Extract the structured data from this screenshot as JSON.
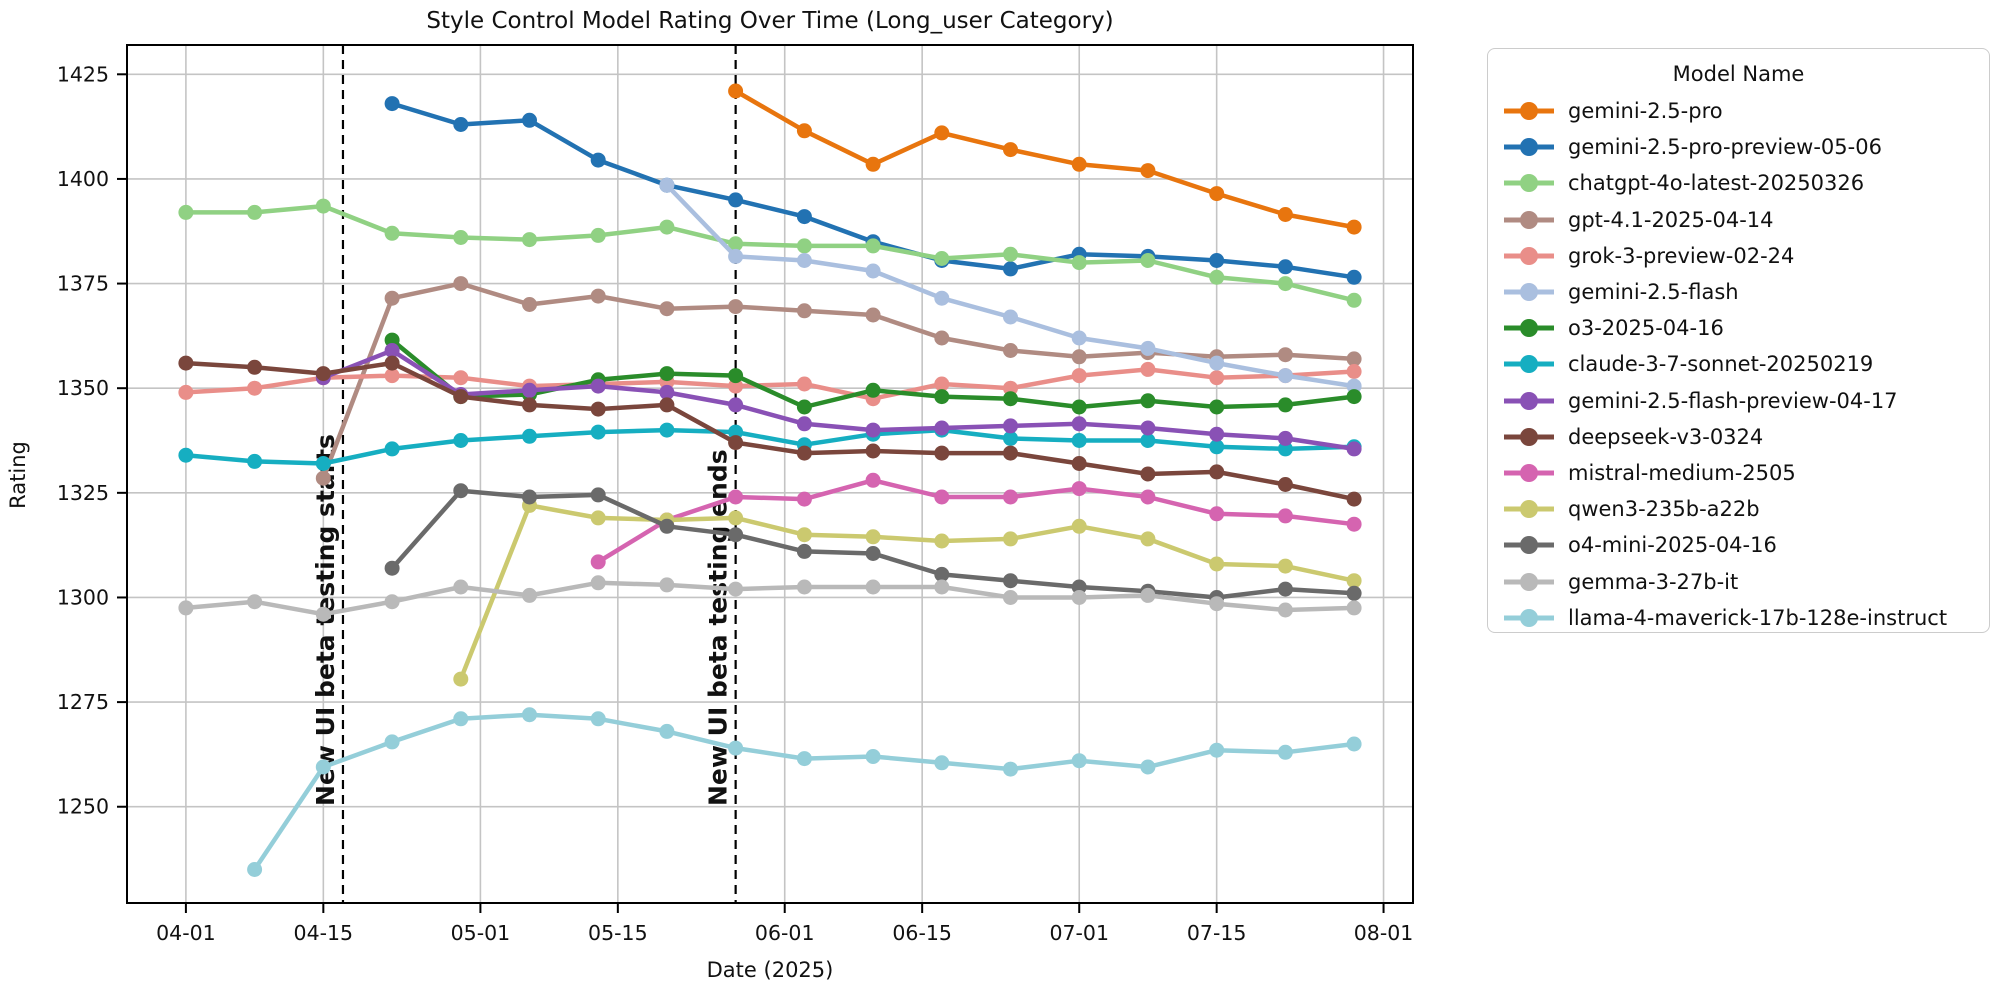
{
  "figure": {
    "title": "Style Control Model Rating Over Time (Long_user Category)",
    "xlabel": "Date (2025)",
    "ylabel": "Rating"
  },
  "legend": {
    "title": "Model Name"
  },
  "chart_data": {
    "type": "line",
    "title": "Style Control Model Rating Over Time (Long_user Category)",
    "xlabel": "Date (2025)",
    "ylabel": "Rating",
    "legend_title": "Model Name",
    "legend_position": "right",
    "grid": true,
    "x_unit": "days since 2025-04-01",
    "x_days": [
      0,
      7,
      14,
      21,
      28,
      35,
      42,
      49,
      56,
      63,
      70,
      77,
      84,
      91,
      98,
      105,
      112,
      119
    ],
    "x_dates": [
      "04-01",
      "04-08",
      "04-15",
      "04-22",
      "04-29",
      "05-06",
      "05-13",
      "05-20",
      "05-27",
      "06-03",
      "06-10",
      "06-17",
      "06-24",
      "07-01",
      "07-08",
      "07-15",
      "07-22",
      "07-29"
    ],
    "xticks": [
      {
        "day": 0,
        "label": "04-01"
      },
      {
        "day": 14,
        "label": "04-15"
      },
      {
        "day": 30,
        "label": "05-01"
      },
      {
        "day": 44,
        "label": "05-15"
      },
      {
        "day": 61,
        "label": "06-01"
      },
      {
        "day": 75,
        "label": "06-15"
      },
      {
        "day": 91,
        "label": "07-01"
      },
      {
        "day": 105,
        "label": "07-15"
      },
      {
        "day": 122,
        "label": "08-01"
      }
    ],
    "yticks": [
      1250,
      1275,
      1300,
      1325,
      1350,
      1375,
      1400,
      1425
    ],
    "xlim": [
      -6,
      125
    ],
    "ylim": [
      1227,
      1432
    ],
    "annotations": [
      {
        "day": 16,
        "label": "New UI beta testing starts"
      },
      {
        "day": 56,
        "label": "New UI beta testing ends"
      }
    ],
    "grid_color": "#c4c4c4",
    "annotation_color": "#111111",
    "series": [
      {
        "name": "gemini-2.5-pro",
        "color": "#e8750e",
        "values": [
          null,
          null,
          null,
          null,
          null,
          null,
          null,
          null,
          1421,
          1411.5,
          1403.5,
          1411,
          1407,
          1403.5,
          1402,
          1396.5,
          1391.5,
          1388.5
        ]
      },
      {
        "name": "gemini-2.5-pro-preview-05-06",
        "color": "#2272b2",
        "values": [
          null,
          null,
          null,
          1418,
          1413,
          1414,
          1404.5,
          1398.5,
          1395,
          1391,
          1385,
          1380.5,
          1378.5,
          1382,
          1381.5,
          1380.5,
          1379,
          1376.5
        ]
      },
      {
        "name": "chatgpt-4o-latest-20250326",
        "color": "#90d183",
        "values": [
          1392,
          1392,
          1393.5,
          1387,
          1386,
          1385.5,
          1386.5,
          1388.5,
          1384.5,
          1384,
          1384,
          1381,
          1382,
          1380,
          1380.5,
          1376.5,
          1375,
          1371
        ]
      },
      {
        "name": "gpt-4.1-2025-04-14",
        "color": "#b08b82",
        "values": [
          null,
          null,
          1328.5,
          1371.5,
          1375,
          1370,
          1372,
          1369,
          1369.5,
          1368.5,
          1367.5,
          1362,
          1359,
          1357.5,
          1358.5,
          1357.5,
          1358,
          1357
        ]
      },
      {
        "name": "grok-3-preview-02-24",
        "color": "#e98e89",
        "values": [
          1349,
          1350,
          1352.5,
          1353,
          1352.5,
          1350.5,
          1351,
          1351.5,
          1350.5,
          1351,
          1347.5,
          1351,
          1350,
          1353,
          1354.5,
          1352.5,
          1353,
          1354
        ]
      },
      {
        "name": "gemini-2.5-flash",
        "color": "#aabfdf",
        "values": [
          null,
          null,
          null,
          null,
          null,
          null,
          null,
          1398.5,
          1381.5,
          1380.5,
          1378,
          1371.5,
          1367,
          1362,
          1359.5,
          1356,
          1353,
          1350.5
        ]
      },
      {
        "name": "o3-2025-04-16",
        "color": "#2a8c2a",
        "values": [
          null,
          null,
          null,
          1361.5,
          1348,
          1348.5,
          1352,
          1353.5,
          1353,
          1345.5,
          1349.5,
          1348,
          1347.5,
          1345.5,
          1347,
          1345.5,
          1346,
          1348
        ]
      },
      {
        "name": "claude-3-7-sonnet-20250219",
        "color": "#16aec1",
        "values": [
          1334,
          1332.5,
          1332,
          1335.5,
          1337.5,
          1338.5,
          1339.5,
          1340,
          1339.5,
          1336.5,
          1339,
          1340,
          1338,
          1337.5,
          1337.5,
          1336,
          1335.5,
          1336
        ]
      },
      {
        "name": "gemini-2.5-flash-preview-04-17",
        "color": "#8951b5",
        "values": [
          null,
          null,
          1352.5,
          1359,
          1348.5,
          1349.5,
          1350.5,
          1349,
          1346,
          1341.5,
          1340,
          1340.5,
          1341,
          1341.5,
          1340.5,
          1339,
          1338,
          1335.5
        ]
      },
      {
        "name": "deepseek-v3-0324",
        "color": "#7a463c",
        "values": [
          1356,
          1355,
          1353.5,
          1356,
          1348,
          1346,
          1345,
          1346,
          1337,
          1334.5,
          1335,
          1334.5,
          1334.5,
          1332,
          1329.5,
          1330,
          1327,
          1323.5
        ]
      },
      {
        "name": "mistral-medium-2505",
        "color": "#d564b0",
        "values": [
          null,
          null,
          null,
          null,
          null,
          null,
          1308.5,
          1318.5,
          1324,
          1323.5,
          1328,
          1324,
          1324,
          1326,
          1324,
          1320,
          1319.5,
          1317.5
        ]
      },
      {
        "name": "qwen3-235b-a22b",
        "color": "#cbc96f",
        "values": [
          null,
          null,
          null,
          null,
          1280.5,
          1322,
          1319,
          1318.5,
          1319,
          1315,
          1314.5,
          1313.5,
          1314,
          1317,
          1314,
          1308,
          1307.5,
          1304
        ]
      },
      {
        "name": "o4-mini-2025-04-16",
        "color": "#6a6a6a",
        "values": [
          null,
          null,
          null,
          1307,
          1325.5,
          1324,
          1324.5,
          1317,
          1315,
          1311,
          1310.5,
          1305.5,
          1304,
          1302.5,
          1301.5,
          1300,
          1302,
          1301
        ]
      },
      {
        "name": "gemma-3-27b-it",
        "color": "#b9b9b9",
        "values": [
          1297.5,
          1299,
          1296,
          1299,
          1302.5,
          1300.5,
          1303.5,
          1303,
          1302,
          1302.5,
          1302.5,
          1302.5,
          1300,
          1300,
          1300.5,
          1298.5,
          1297,
          1297.5
        ]
      },
      {
        "name": "llama-4-maverick-17b-128e-instruct",
        "color": "#94ced9",
        "values": [
          null,
          1235,
          1259.5,
          1265.5,
          1271,
          1272,
          1271,
          1268,
          1264,
          1261.5,
          1262,
          1260.5,
          1259,
          1261,
          1259.5,
          1263.5,
          1263,
          1265
        ]
      }
    ]
  }
}
